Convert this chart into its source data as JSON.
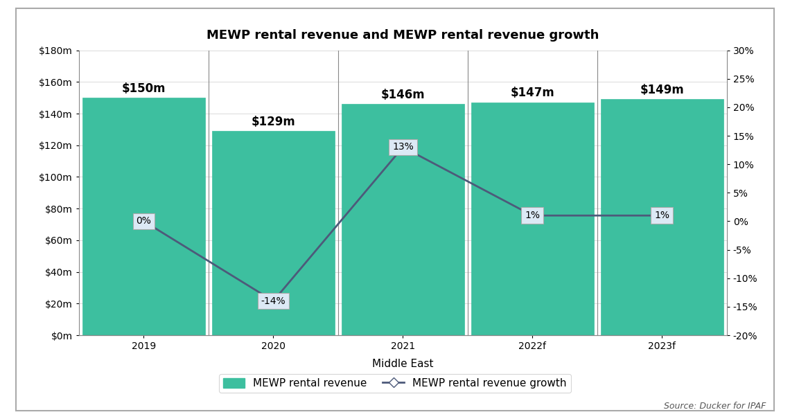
{
  "title": "MEWP rental revenue and MEWP rental revenue growth",
  "categories": [
    "2019",
    "2020",
    "2021",
    "2022f",
    "2023f"
  ],
  "bar_values": [
    150,
    129,
    146,
    147,
    149
  ],
  "bar_labels": [
    "$150m",
    "$129m",
    "$146m",
    "$147m",
    "$149m"
  ],
  "growth_values": [
    0,
    -14,
    13,
    1,
    1
  ],
  "growth_labels": [
    "0%",
    "-14%",
    "13%",
    "1%",
    "1%"
  ],
  "bar_color": "#3dbf9f",
  "line_color": "#4d5a7a",
  "bar_edge_color": "#3dbf9f",
  "xlabel": "Middle East",
  "ylim_left": [
    0,
    180
  ],
  "ylim_right": [
    -20,
    30
  ],
  "yticks_left": [
    0,
    20,
    40,
    60,
    80,
    100,
    120,
    140,
    160,
    180
  ],
  "ytick_labels_left": [
    "$0m",
    "$20m",
    "$40m",
    "$60m",
    "$80m",
    "$100m",
    "$120m",
    "$140m",
    "$160m",
    "$180m"
  ],
  "yticks_right": [
    -20,
    -15,
    -10,
    -5,
    0,
    5,
    10,
    15,
    20,
    25,
    30
  ],
  "ytick_labels_right": [
    "-20%",
    "-15%",
    "-10%",
    "-5%",
    "0%",
    "5%",
    "10%",
    "15%",
    "20%",
    "25%",
    "30%"
  ],
  "legend_bar_label": "MEWP rental revenue",
  "legend_line_label": "MEWP rental revenue growth",
  "source_text": "Source: Ducker for IPAF",
  "background_color": "#ffffff",
  "outer_border_color": "#aaaaaa",
  "title_fontsize": 13,
  "tick_fontsize": 10,
  "label_fontsize": 11,
  "bar_width": 0.95,
  "annotation_bg_color": "#dce9f5",
  "annotation_edge_color": "#aaaaaa"
}
